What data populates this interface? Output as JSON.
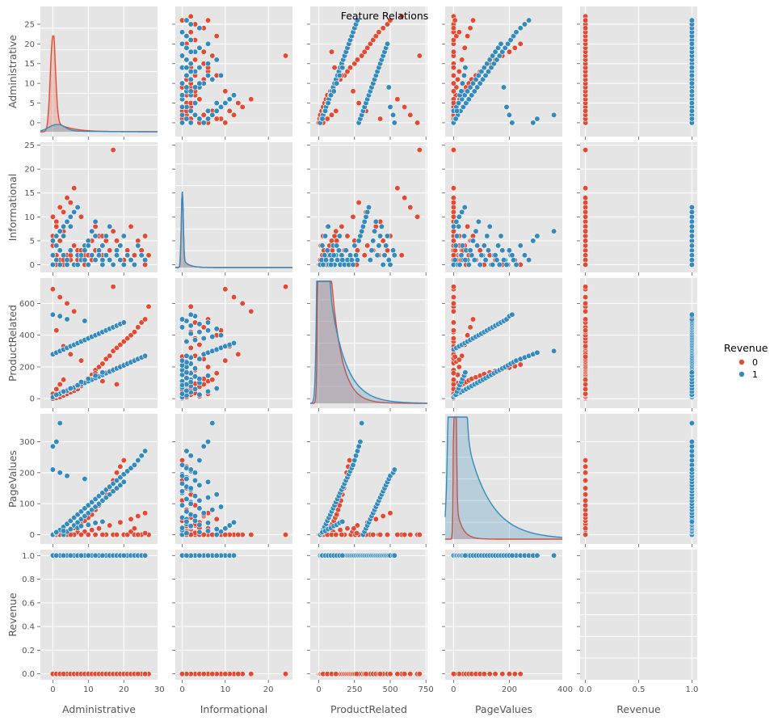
{
  "chart_data": {
    "type": "scatter",
    "title": "Feature Relations",
    "variables": [
      "Administrative",
      "Informational",
      "ProductRelated",
      "PageValues",
      "Revenue"
    ],
    "axes": {
      "Administrative": {
        "lim": [
          -3.5,
          29.5
        ],
        "ticks": [
          0,
          5,
          10,
          15,
          20,
          25
        ],
        "xticks": [
          0,
          10,
          20,
          30
        ]
      },
      "Informational": {
        "lim": [
          -1.6,
          25.6
        ],
        "ticks": [
          0,
          5,
          10,
          15,
          20,
          25
        ],
        "xticks": [
          0,
          10,
          20
        ]
      },
      "ProductRelated": {
        "lim": [
          -60,
          760
        ],
        "ticks": [
          0,
          200,
          400,
          600
        ],
        "xticks": [
          0,
          250,
          500,
          750
        ]
      },
      "PageValues": {
        "lim": [
          -30,
          390
        ],
        "ticks": [
          0,
          100,
          200,
          300
        ],
        "xticks": [
          0,
          200,
          400
        ]
      },
      "Revenue": {
        "lim": [
          -0.05,
          1.05
        ],
        "ticks": [
          0.0,
          0.2,
          0.4,
          0.6,
          0.8,
          1.0
        ],
        "ticklabels": [
          "0.0",
          "0.2",
          "0.4",
          "0.6",
          "0.8",
          "1.0"
        ],
        "xticks": [
          0.0,
          0.5,
          1.0
        ],
        "xticklabels": [
          "0.0",
          "0.5",
          "1.0"
        ]
      }
    },
    "hue": "Revenue",
    "series": [
      {
        "name": "0",
        "color": "#E24A33",
        "points": [
          [
            0,
            0,
            0,
            0,
            0
          ],
          [
            1,
            0,
            5,
            0,
            0
          ],
          [
            2,
            1,
            10,
            0,
            0
          ],
          [
            3,
            0,
            20,
            2,
            0
          ],
          [
            4,
            2,
            30,
            0,
            0
          ],
          [
            5,
            1,
            40,
            5,
            0
          ],
          [
            6,
            0,
            50,
            0,
            0
          ],
          [
            7,
            3,
            60,
            8,
            0
          ],
          [
            8,
            1,
            80,
            0,
            0
          ],
          [
            9,
            2,
            100,
            10,
            0
          ],
          [
            10,
            4,
            120,
            0,
            0
          ],
          [
            11,
            1,
            150,
            15,
            0
          ],
          [
            12,
            3,
            180,
            0,
            0
          ],
          [
            13,
            6,
            200,
            20,
            0
          ],
          [
            14,
            2,
            220,
            0,
            0
          ],
          [
            15,
            5,
            250,
            0,
            0
          ],
          [
            16,
            3,
            270,
            30,
            0
          ],
          [
            17,
            7,
            300,
            0,
            0
          ],
          [
            18,
            2,
            320,
            0,
            0
          ],
          [
            19,
            4,
            340,
            40,
            0
          ],
          [
            20,
            1,
            360,
            0,
            0
          ],
          [
            21,
            3,
            380,
            0,
            0
          ],
          [
            22,
            8,
            400,
            50,
            0
          ],
          [
            23,
            2,
            420,
            0,
            0
          ],
          [
            24,
            5,
            450,
            60,
            0
          ],
          [
            25,
            3,
            480,
            0,
            0
          ],
          [
            26,
            6,
            500,
            70,
            0
          ],
          [
            27,
            2,
            580,
            0,
            0
          ],
          [
            0,
            10,
            690,
            0,
            0
          ],
          [
            17,
            24,
            705,
            0,
            0
          ],
          [
            2,
            12,
            640,
            0,
            0
          ],
          [
            4,
            14,
            600,
            0,
            0
          ],
          [
            6,
            16,
            550,
            0,
            0
          ],
          [
            1,
            9,
            430,
            0,
            0
          ],
          [
            3,
            11,
            330,
            0,
            0
          ],
          [
            5,
            13,
            280,
            0,
            0
          ],
          [
            8,
            10,
            240,
            0,
            0
          ],
          [
            12,
            8,
            160,
            0,
            0
          ],
          [
            14,
            6,
            110,
            0,
            0
          ],
          [
            18,
            5,
            90,
            0,
            0
          ],
          [
            0,
            4,
            15,
            0,
            0
          ],
          [
            1,
            2,
            25,
            3,
            0
          ],
          [
            2,
            3,
            35,
            6,
            0
          ],
          [
            3,
            1,
            45,
            9,
            0
          ],
          [
            4,
            0,
            55,
            12,
            0
          ],
          [
            5,
            2,
            65,
            18,
            0
          ],
          [
            6,
            4,
            75,
            22,
            0
          ],
          [
            7,
            1,
            85,
            28,
            0
          ],
          [
            8,
            3,
            95,
            35,
            0
          ],
          [
            9,
            0,
            105,
            45,
            0
          ],
          [
            10,
            2,
            115,
            55,
            0
          ],
          [
            11,
            5,
            125,
            65,
            0
          ],
          [
            12,
            1,
            135,
            80,
            0
          ],
          [
            13,
            3,
            145,
            95,
            0
          ],
          [
            14,
            0,
            155,
            110,
            0
          ],
          [
            15,
            2,
            165,
            130,
            0
          ],
          [
            16,
            1,
            175,
            150,
            0
          ],
          [
            17,
            0,
            185,
            175,
            0
          ],
          [
            18,
            3,
            195,
            200,
            0
          ],
          [
            19,
            1,
            205,
            220,
            0
          ],
          [
            20,
            0,
            215,
            240,
            0
          ],
          [
            21,
            2,
            225,
            0,
            0
          ],
          [
            22,
            1,
            235,
            10,
            0
          ],
          [
            23,
            0,
            245,
            20,
            0
          ],
          [
            24,
            4,
            255,
            0,
            0
          ],
          [
            26,
            0,
            265,
            5,
            0
          ],
          [
            0,
            6,
            30,
            0,
            0
          ],
          [
            1,
            8,
            60,
            0,
            0
          ],
          [
            2,
            5,
            90,
            0,
            0
          ],
          [
            3,
            7,
            120,
            0,
            0
          ]
        ]
      },
      {
        "name": "1",
        "color": "#348ABD",
        "points": [
          [
            0,
            0,
            10,
            0,
            1
          ],
          [
            1,
            1,
            20,
            5,
            1
          ],
          [
            2,
            0,
            30,
            15,
            1
          ],
          [
            3,
            2,
            40,
            25,
            1
          ],
          [
            4,
            1,
            50,
            35,
            1
          ],
          [
            5,
            3,
            60,
            45,
            1
          ],
          [
            6,
            0,
            70,
            55,
            1
          ],
          [
            7,
            2,
            80,
            65,
            1
          ],
          [
            8,
            1,
            90,
            75,
            1
          ],
          [
            9,
            4,
            100,
            85,
            1
          ],
          [
            10,
            0,
            110,
            95,
            1
          ],
          [
            11,
            2,
            120,
            105,
            1
          ],
          [
            12,
            1,
            130,
            115,
            1
          ],
          [
            13,
            3,
            140,
            125,
            1
          ],
          [
            14,
            0,
            150,
            135,
            1
          ],
          [
            15,
            2,
            160,
            145,
            1
          ],
          [
            16,
            1,
            170,
            155,
            1
          ],
          [
            17,
            0,
            180,
            165,
            1
          ],
          [
            18,
            3,
            190,
            175,
            1
          ],
          [
            19,
            1,
            200,
            185,
            1
          ],
          [
            20,
            0,
            210,
            195,
            1
          ],
          [
            21,
            2,
            220,
            205,
            1
          ],
          [
            22,
            1,
            230,
            215,
            1
          ],
          [
            23,
            0,
            240,
            225,
            1
          ],
          [
            24,
            4,
            250,
            240,
            1
          ],
          [
            25,
            2,
            260,
            255,
            1
          ],
          [
            26,
            1,
            270,
            270,
            1
          ],
          [
            0,
            5,
            280,
            285,
            1
          ],
          [
            1,
            6,
            290,
            300,
            1
          ],
          [
            2,
            7,
            300,
            360,
            1
          ],
          [
            3,
            8,
            310,
            0,
            1
          ],
          [
            4,
            9,
            320,
            10,
            1
          ],
          [
            5,
            10,
            330,
            20,
            1
          ],
          [
            6,
            11,
            340,
            30,
            1
          ],
          [
            7,
            12,
            350,
            40,
            1
          ],
          [
            8,
            1,
            360,
            50,
            1
          ],
          [
            9,
            3,
            370,
            60,
            1
          ],
          [
            10,
            5,
            380,
            70,
            1
          ],
          [
            11,
            7,
            390,
            80,
            1
          ],
          [
            12,
            9,
            400,
            90,
            1
          ],
          [
            13,
            2,
            410,
            100,
            1
          ],
          [
            14,
            4,
            420,
            110,
            1
          ],
          [
            15,
            6,
            430,
            120,
            1
          ],
          [
            16,
            8,
            440,
            130,
            1
          ],
          [
            17,
            0,
            450,
            140,
            1
          ],
          [
            18,
            2,
            460,
            150,
            1
          ],
          [
            19,
            4,
            470,
            160,
            1
          ],
          [
            20,
            6,
            480,
            170,
            1
          ],
          [
            9,
            1,
            490,
            180,
            1
          ],
          [
            4,
            0,
            500,
            190,
            1
          ],
          [
            2,
            3,
            520,
            200,
            1
          ],
          [
            0,
            2,
            530,
            210,
            1
          ],
          [
            1,
            4,
            25,
            8,
            1
          ],
          [
            3,
            6,
            45,
            12,
            1
          ],
          [
            5,
            8,
            65,
            18,
            1
          ],
          [
            7,
            0,
            85,
            22,
            1
          ],
          [
            8,
            2,
            105,
            28,
            1
          ],
          [
            10,
            4,
            125,
            32,
            1
          ],
          [
            12,
            6,
            145,
            38,
            1
          ],
          [
            14,
            1,
            165,
            42,
            1
          ]
        ]
      }
    ],
    "kde": {
      "Administrative": {
        "0": {
          "mode": 0,
          "bandwidth": 0.7,
          "peak": 27.5
        },
        "1": {
          "mode": 1,
          "bandwidth": 2.2,
          "peak": 7.5
        }
      },
      "Informational": {
        "0": {
          "mode": 0,
          "bandwidth": 0.22,
          "peak": 24.5
        },
        "1": {
          "mode": 0,
          "bandwidth": 0.22,
          "peak": 24.5
        }
      },
      "ProductRelated": {
        "0": {
          "mode": 20,
          "bandwidth": 12,
          "peak": 710
        },
        "1": {
          "mode": 25,
          "bandwidth": 18,
          "peak": 400
        }
      },
      "PageValues": {
        "0": {
          "mode": 5,
          "bandwidth": 3.5,
          "peak": 90
        },
        "1": {
          "mode": 10,
          "bandwidth": 14,
          "peak": 345
        }
      },
      "Revenue": {}
    },
    "legend": {
      "title": "Revenue",
      "placement": "right",
      "entries": [
        "0",
        "1"
      ]
    },
    "grid": true
  }
}
